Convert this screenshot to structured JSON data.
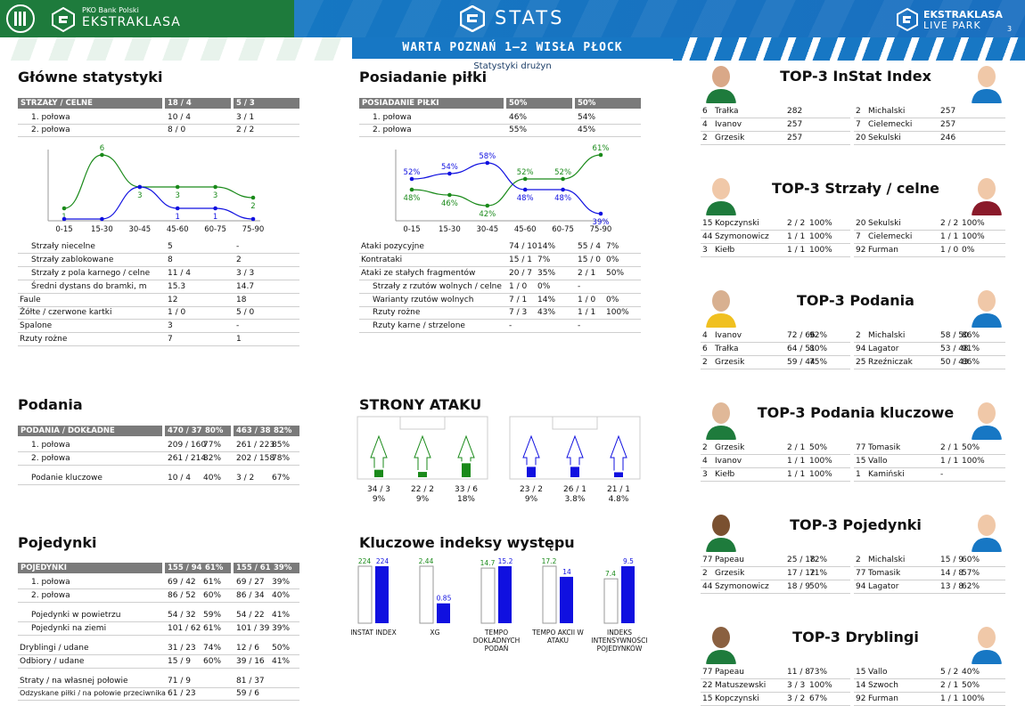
{
  "header": {
    "sponsor": "PKO Bank Polski",
    "league": "EKSTRAKLASA",
    "stats_label": "STATS",
    "live_park_top": "EKSTRAKLASA",
    "live_park_bottom": "LIVE PARK",
    "page_number": "3"
  },
  "match": {
    "title": "WARTA POZNAŃ 1–2 WISŁA PŁOCK",
    "subtitle": "Statystyki drużyn"
  },
  "colors": {
    "home": "#1a8a1a",
    "away": "#1010e0",
    "header_gray": "#7a7a7a",
    "top_blue": "#1777c4",
    "top_green": "#1e7b3c"
  },
  "main_stats": {
    "title": "Główne statystyki",
    "header": [
      "STRZAŁY / CELNE",
      "18 / 4",
      "5 / 3"
    ],
    "halves": [
      [
        "1. połowa",
        "10 / 4",
        "3 / 1"
      ],
      [
        "2. połowa",
        "8 / 0",
        "2 / 2"
      ]
    ],
    "rows": [
      [
        "Strzały niecelne",
        "5",
        "-"
      ],
      [
        "Strzały zablokowane",
        "8",
        "2"
      ],
      [
        "Strzały z pola karnego / celne",
        "11 / 4",
        "3 / 3"
      ],
      [
        "Średni dystans do bramki, m",
        "15.3",
        "14.7"
      ],
      [
        "Faule",
        "12",
        "18"
      ],
      [
        "Żółte / czerwone kartki",
        "1 / 0",
        "5 / 0"
      ],
      [
        "Spalone",
        "3",
        "-"
      ],
      [
        "Rzuty rożne",
        "7",
        "1"
      ]
    ]
  },
  "possession": {
    "title": "Posiadanie piłki",
    "header": [
      "POSIADANIE PIŁKI",
      "50%",
      "50%"
    ],
    "halves": [
      [
        "1. połowa",
        "46%",
        "54%"
      ],
      [
        "2. połowa",
        "55%",
        "45%"
      ]
    ],
    "rows": [
      [
        "Ataki pozycyjne",
        "74 / 10",
        "14%",
        "55 / 4",
        "7%"
      ],
      [
        "Kontrataki",
        "15 / 1",
        "7%",
        "15 / 0",
        "0%"
      ],
      [
        "Ataki ze stałych fragmentów",
        "20 / 7",
        "35%",
        "2 / 1",
        "50%"
      ],
      [
        "Strzały z rzutów wolnych / celne",
        "1 / 0",
        "0%",
        "-",
        ""
      ],
      [
        "Warianty rzutów wolnych",
        "7 / 1",
        "14%",
        "1 / 0",
        "0%"
      ],
      [
        "Rzuty rożne",
        "7 / 3",
        "43%",
        "1 / 1",
        "100%"
      ],
      [
        "Rzuty karne / strzelone",
        "-",
        "",
        "-",
        ""
      ]
    ]
  },
  "chart_data": [
    {
      "type": "line",
      "categories": [
        "0-15",
        "15-30",
        "30-45",
        "45-60",
        "60-75",
        "75-90"
      ],
      "series": [
        {
          "values": [
            1,
            6,
            3,
            3,
            3,
            2
          ]
        },
        {
          "values": [
            0,
            0,
            3,
            1,
            1,
            0
          ]
        }
      ],
      "data_labels": [
        [
          "1",
          "6",
          "3",
          "3",
          "3",
          "2"
        ],
        [
          "",
          "",
          "",
          "1",
          "1",
          ""
        ]
      ]
    },
    {
      "type": "line",
      "categories": [
        "0-15",
        "15-30",
        "30-45",
        "45-60",
        "60-75",
        "75-90"
      ],
      "series": [
        {
          "values": [
            48,
            46,
            42,
            52,
            52,
            61
          ]
        },
        {
          "values": [
            52,
            54,
            58,
            48,
            48,
            39
          ]
        }
      ]
    },
    {
      "type": "bar",
      "categories": [
        "INSTAT INDEX",
        "XG",
        "TEMPO DOKLADNYCH PODAŃ",
        "TEMPO AKCII W ATAKU",
        "INDEKS INTENSYWNOŚCI POJEDYNKÓW"
      ],
      "series": [
        {
          "values": [
            224,
            2.44,
            14.7,
            17.2,
            7.4
          ]
        },
        {
          "values": [
            224,
            0.85,
            15.2,
            14,
            9.5
          ]
        }
      ]
    }
  ],
  "passes": {
    "title": "Podania",
    "header": [
      "PODANIA / DOKŁADNE",
      "470 / 374",
      "80%",
      "463 / 381",
      "82%"
    ],
    "rows": [
      [
        "1. połowa",
        "209 / 160",
        "77%",
        "261 / 223",
        "85%"
      ],
      [
        "2. połowa",
        "261 / 214",
        "82%",
        "202 / 158",
        "78%"
      ],
      [
        "Podanie kluczowe",
        "10 / 4",
        "40%",
        "3 / 2",
        "67%"
      ]
    ]
  },
  "attack_sides": {
    "title": "STRONY ATAKU",
    "home": [
      {
        "value": "34 / 3",
        "pct": "9%",
        "share": 0.14
      },
      {
        "value": "22 / 2",
        "pct": "9%",
        "share": 0.08
      },
      {
        "value": "33 / 6",
        "pct": "18%",
        "share": 0.32
      }
    ],
    "away": [
      {
        "value": "23 / 2",
        "pct": "9%",
        "share": 0.22
      },
      {
        "value": "26 / 1",
        "pct": "3.8%",
        "share": 0.22
      },
      {
        "value": "21 / 1",
        "pct": "4.8%",
        "share": 0.07
      }
    ]
  },
  "duels": {
    "title": "Pojedynki",
    "header": [
      "POJEDYNKI",
      "155 / 94",
      "61%",
      "155 / 61",
      "39%"
    ],
    "rows": [
      [
        "1. połowa",
        "69 / 42",
        "61%",
        "69 / 27",
        "39%"
      ],
      [
        "2. połowa",
        "86 / 52",
        "60%",
        "86 / 34",
        "40%"
      ],
      [
        "Pojedynki w powietrzu",
        "54 / 32",
        "59%",
        "54 / 22",
        "41%"
      ],
      [
        "Pojedynki na ziemi",
        "101 / 62",
        "61%",
        "101 / 39",
        "39%"
      ],
      [
        "Dryblingi / udane",
        "31 / 23",
        "74%",
        "12 / 6",
        "50%"
      ],
      [
        "Odbiory / udane",
        "15 / 9",
        "60%",
        "39 / 16",
        "41%"
      ],
      [
        "Straty / na własnej połowie",
        "71 / 9",
        "",
        "81 / 37",
        ""
      ],
      [
        "Odzyskane piłki / na połowie przeciwnika",
        "61 / 23",
        "",
        "59 / 6",
        ""
      ]
    ]
  },
  "indices": {
    "title": "Kluczowe indeksy występu",
    "items": [
      {
        "label": "INSTAT INDEX",
        "home": "224",
        "away": "224"
      },
      {
        "label": "XG",
        "home": "2.44",
        "away": "0.85"
      },
      {
        "label": "TEMPO DOKLADNYCH PODAŃ",
        "home": "14.7",
        "away": "15.2"
      },
      {
        "label": "TEMPO AKCII W ATAKU",
        "home": "17.2",
        "away": "14"
      },
      {
        "label": "INDEKS INTENSYWNOŚCI POJEDYNKÓW",
        "home": "7.4",
        "away": "9.5"
      }
    ]
  },
  "top3": [
    {
      "title": "TOP-3 InStat Index",
      "home": [
        [
          "6",
          "Trałka",
          "282"
        ],
        [
          "4",
          "Ivanov",
          "257"
        ],
        [
          "2",
          "Grzesik",
          "257"
        ]
      ],
      "away": [
        [
          "2",
          "Michalski",
          "257"
        ],
        [
          "7",
          "Cielemecki",
          "257"
        ],
        [
          "20",
          "Sekulski",
          "246"
        ]
      ]
    },
    {
      "title": "TOP-3 Strzały / celne",
      "home": [
        [
          "15",
          "Kopczynski",
          "2 / 2",
          "100%"
        ],
        [
          "44",
          "Szymonowicz",
          "1 / 1",
          "100%"
        ],
        [
          "3",
          "Kiełb",
          "1 / 1",
          "100%"
        ]
      ],
      "away": [
        [
          "20",
          "Sekulski",
          "2 / 2",
          "100%"
        ],
        [
          "7",
          "Cielemecki",
          "1 / 1",
          "100%"
        ],
        [
          "92",
          "Furman",
          "1 / 0",
          "0%"
        ]
      ]
    },
    {
      "title": "TOP-3 Podania",
      "home": [
        [
          "4",
          "Ivanov",
          "72 / 66",
          "92%"
        ],
        [
          "6",
          "Trałka",
          "64 / 51",
          "80%"
        ],
        [
          "2",
          "Grzesik",
          "59 / 44",
          "75%"
        ]
      ],
      "away": [
        [
          "2",
          "Michalski",
          "58 / 50",
          "86%"
        ],
        [
          "94",
          "Lagator",
          "53 / 48",
          "91%"
        ],
        [
          "25",
          "Rzeźniczak",
          "50 / 43",
          "86%"
        ]
      ]
    },
    {
      "title": "TOP-3 Podania kluczowe",
      "home": [
        [
          "2",
          "Grzesik",
          "2 / 1",
          "50%"
        ],
        [
          "4",
          "Ivanov",
          "1 / 1",
          "100%"
        ],
        [
          "3",
          "Kiełb",
          "1 / 1",
          "100%"
        ]
      ],
      "away": [
        [
          "77",
          "Tomasik",
          "2 / 1",
          "50%"
        ],
        [
          "15",
          "Vallo",
          "1 / 1",
          "100%"
        ],
        [
          "1",
          "Kamiński",
          "-",
          ""
        ]
      ]
    },
    {
      "title": "TOP-3 Pojedynki",
      "home": [
        [
          "77",
          "Papeau",
          "25 / 18",
          "72%"
        ],
        [
          "2",
          "Grzesik",
          "17 / 12",
          "71%"
        ],
        [
          "44",
          "Szymonowicz",
          "18 / 9",
          "50%"
        ]
      ],
      "away": [
        [
          "2",
          "Michalski",
          "15 / 9",
          "60%"
        ],
        [
          "77",
          "Tomasik",
          "14 / 8",
          "57%"
        ],
        [
          "94",
          "Lagator",
          "13 / 8",
          "62%"
        ]
      ]
    },
    {
      "title": "TOP-3 Dryblingi",
      "home": [
        [
          "77",
          "Papeau",
          "11 / 8",
          "73%"
        ],
        [
          "22",
          "Matuszewski",
          "3 / 3",
          "100%"
        ],
        [
          "15",
          "Kopczynski",
          "3 / 2",
          "67%"
        ]
      ],
      "away": [
        [
          "15",
          "Vallo",
          "5 / 2",
          "40%"
        ],
        [
          "14",
          "Szwoch",
          "2 / 1",
          "50%"
        ],
        [
          "92",
          "Furman",
          "1 / 1",
          "100%"
        ]
      ]
    }
  ]
}
